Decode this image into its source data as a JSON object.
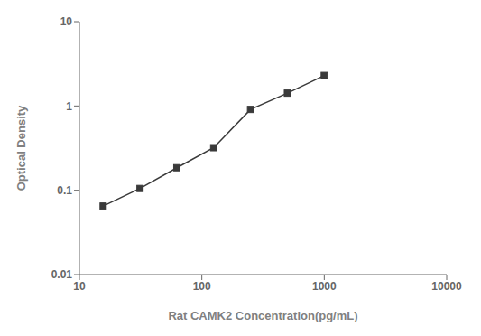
{
  "chart_data": {
    "type": "line",
    "x": [
      15.625,
      31.25,
      62.5,
      125,
      250,
      500,
      1000
    ],
    "values": [
      0.065,
      0.105,
      0.185,
      0.32,
      0.91,
      1.42,
      2.3
    ],
    "xlabel": "Rat CAMK2 Concentration(pg/mL)",
    "ylabel": "Optical Density",
    "xlim": [
      10,
      10000
    ],
    "ylim": [
      0.01,
      10
    ],
    "xticks": [
      10,
      100,
      1000,
      10000
    ],
    "yticks": [
      0.01,
      0.1,
      1,
      10
    ],
    "log": true,
    "color": "#3a3a3a",
    "marker": "square",
    "grid": false
  }
}
